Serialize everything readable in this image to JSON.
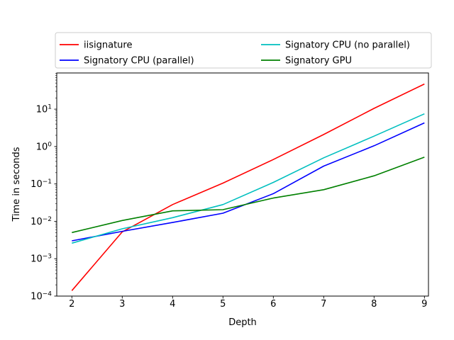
{
  "window": {
    "background_color": "#ffffff"
  },
  "chart_data": {
    "type": "line",
    "title": "",
    "xlabel": "Depth",
    "ylabel": "Time in seconds",
    "x": [
      2,
      3,
      4,
      5,
      6,
      7,
      8,
      9
    ],
    "x_tick_labels": [
      "2",
      "3",
      "4",
      "5",
      "6",
      "7",
      "8",
      "9"
    ],
    "xlim": [
      1.7,
      9.08
    ],
    "yscale": "log",
    "ylim": [
      0.0001,
      93
    ],
    "y_tick_exponents": [
      -4,
      -3,
      -2,
      -1,
      0,
      1
    ],
    "grid": false,
    "axis_color": "#000000",
    "series": [
      {
        "name": "iisignature",
        "color": "#ff0000",
        "values": [
          0.00014,
          0.0052,
          0.028,
          0.105,
          0.45,
          2.1,
          10.5,
          47
        ]
      },
      {
        "name": "Signatory CPU (parallel)",
        "color": "#0000ff",
        "values": [
          0.003,
          0.0054,
          0.0093,
          0.0165,
          0.055,
          0.3,
          1.05,
          4.3
        ]
      },
      {
        "name": "Signatory CPU (no parallel)",
        "color": "#00bfbf",
        "values": [
          0.0026,
          0.0063,
          0.0125,
          0.028,
          0.11,
          0.5,
          1.9,
          7.5
        ]
      },
      {
        "name": "Signatory GPU",
        "color": "#008000",
        "values": [
          0.005,
          0.0105,
          0.019,
          0.0205,
          0.042,
          0.07,
          0.165,
          0.52
        ]
      }
    ],
    "legend": {
      "position": "top, above plot area",
      "ncol": 2,
      "column_series_indices": [
        [
          0,
          1
        ],
        [
          2,
          3
        ]
      ],
      "frame_color": "#cccccc",
      "background": "#ffffff"
    }
  }
}
